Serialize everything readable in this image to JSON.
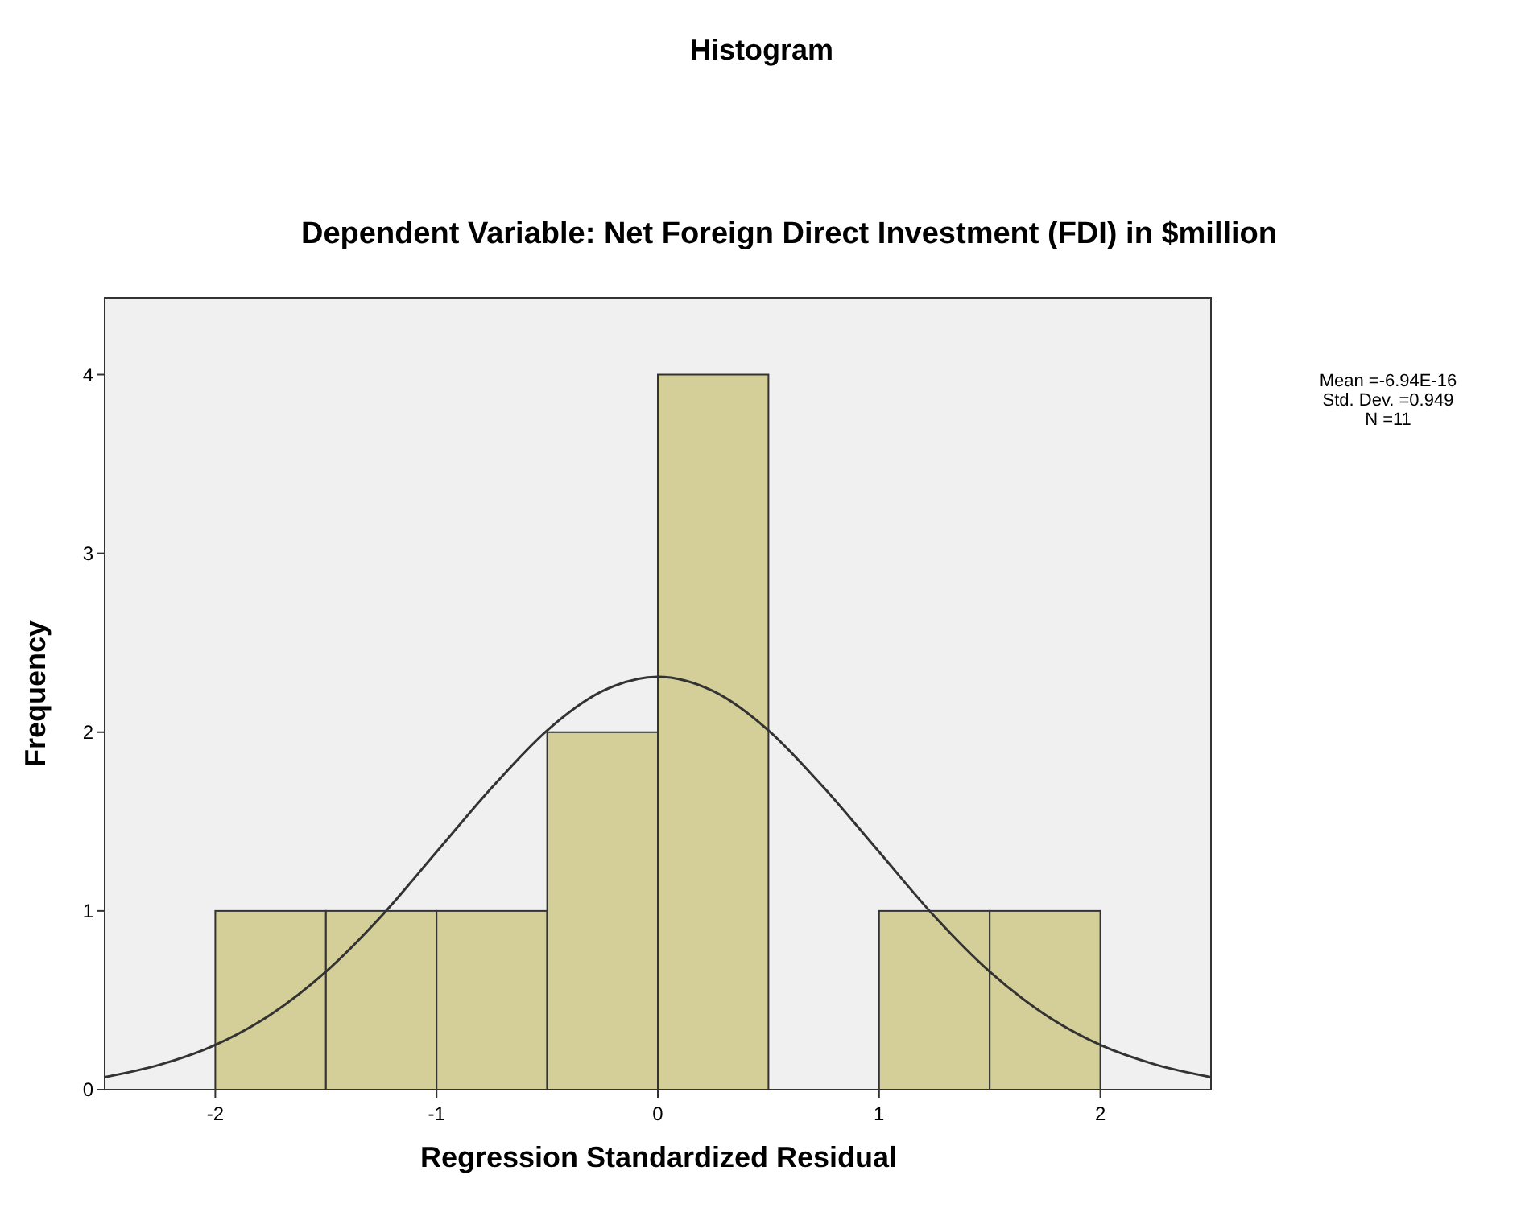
{
  "chart_data": {
    "type": "histogram",
    "title": "Histogram",
    "subtitle": "Dependent Variable: Net Foreign Direct Investment (FDI) in $million",
    "xlabel": "Regression Standardized Residual",
    "ylabel": "Frequency",
    "annotations": [
      "Mean =-6.94E-16",
      "Std. Dev. =0.949",
      "N =11"
    ],
    "bins": [
      -2,
      -1.5,
      -1,
      -0.5,
      0,
      0.5,
      1,
      1.5,
      2
    ],
    "series": [
      {
        "color": "#d4cf98",
        "values": [
          1,
          1,
          1,
          2,
          4,
          0,
          1,
          1
        ]
      },
      {
        "type": "line",
        "color": "#333333",
        "x": [
          -2.5,
          -2.25,
          -2,
          -1.75,
          -1.5,
          -1.25,
          -1,
          -0.75,
          -0.5,
          -0.25,
          0,
          0.25,
          0.5,
          0.75,
          1,
          1.25,
          1.5,
          1.75,
          2,
          2.25,
          2.5
        ],
        "values": [
          0.07,
          0.14,
          0.25,
          0.42,
          0.66,
          0.97,
          1.33,
          1.69,
          2.01,
          2.23,
          2.31,
          2.23,
          2.01,
          1.69,
          1.33,
          0.97,
          0.66,
          0.42,
          0.25,
          0.14,
          0.07
        ]
      }
    ],
    "xlim": [
      -2.5,
      2.5
    ],
    "xticks": [
      -2,
      -1,
      0,
      1,
      2
    ],
    "ylim": [
      0,
      4.43
    ],
    "yticks": [
      0,
      1,
      2,
      3,
      4
    ],
    "grid": false
  }
}
